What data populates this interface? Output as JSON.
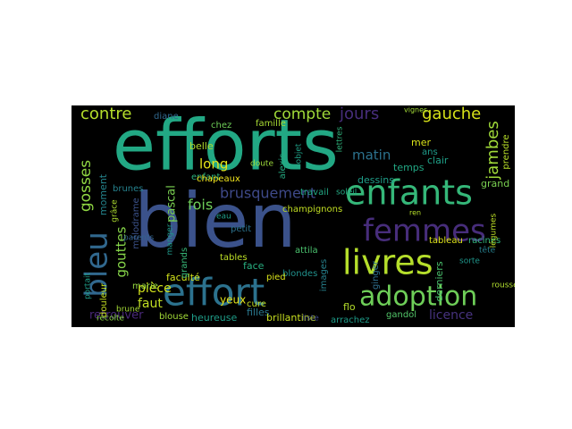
{
  "wordcloud": {
    "words": [
      {
        "text": "efforts",
        "color": "#22a884"
      },
      {
        "text": "bien",
        "color": "#3b528b"
      },
      {
        "text": "effort",
        "color": "#2c728e"
      },
      {
        "text": "enfants",
        "color": "#35b779"
      },
      {
        "text": "femmes",
        "color": "#472d7b"
      },
      {
        "text": "livres",
        "color": "#b5de2b"
      },
      {
        "text": "adoption",
        "color": "#6ece58"
      },
      {
        "text": "bleu",
        "color": "#31688e"
      },
      {
        "text": "contre",
        "color": "#b5de2b"
      },
      {
        "text": "gauche",
        "color": "#d7e219"
      },
      {
        "text": "jours",
        "color": "#472d7b"
      },
      {
        "text": "compte",
        "color": "#a0da39"
      },
      {
        "text": "jambes",
        "color": "#a0da39"
      },
      {
        "text": "brusquement",
        "color": "#3e4989"
      },
      {
        "text": "gosses",
        "color": "#90d743"
      },
      {
        "text": "gouttes",
        "color": "#86d549"
      },
      {
        "text": "fois",
        "color": "#6ece58"
      },
      {
        "text": "matin",
        "color": "#2c728e"
      },
      {
        "text": "moment",
        "color": "#25858e"
      },
      {
        "text": "pascal",
        "color": "#7ad151"
      },
      {
        "text": "faut",
        "color": "#c2df23"
      },
      {
        "text": "pièce",
        "color": "#d2e21b"
      },
      {
        "text": "long",
        "color": "#e5e419"
      },
      {
        "text": "licence",
        "color": "#46327e"
      },
      {
        "text": "retrouver",
        "color": "#482878"
      },
      {
        "text": "yeux",
        "color": "#e5e419"
      },
      {
        "text": "dessins",
        "color": "#1f9e89"
      },
      {
        "text": "temps",
        "color": "#22a884"
      },
      {
        "text": "clair",
        "color": "#1fa188"
      },
      {
        "text": "mer",
        "color": "#d8e219"
      },
      {
        "text": "ans",
        "color": "#1e9b8a"
      },
      {
        "text": "derniers",
        "color": "#4ac16d"
      },
      {
        "text": "grand",
        "color": "#7ad151"
      },
      {
        "text": "diane",
        "color": "#31688e"
      },
      {
        "text": "belle",
        "color": "#b0dd2f"
      },
      {
        "text": "enfant",
        "color": "#2db27d"
      },
      {
        "text": "brunes",
        "color": "#26828e"
      },
      {
        "text": "chapeaux",
        "color": "#f1e51d"
      },
      {
        "text": "filles",
        "color": "#2a788e"
      },
      {
        "text": "champignons",
        "color": "#c2df23"
      },
      {
        "text": "blondes",
        "color": "#21918c"
      },
      {
        "text": "faculté",
        "color": "#d2e21b"
      },
      {
        "text": "heureuse",
        "color": "#1f9e89"
      },
      {
        "text": "brillantine",
        "color": "#c8e020"
      },
      {
        "text": "arrachez",
        "color": "#1e9c89"
      },
      {
        "text": "gandol",
        "color": "#52c569"
      },
      {
        "text": "rousse",
        "color": "#b0dd2f"
      },
      {
        "text": "attila",
        "color": "#4ac16d"
      },
      {
        "text": "liste",
        "color": "#3e4989"
      },
      {
        "text": "flo",
        "color": "#b5de2b"
      },
      {
        "text": "blouse",
        "color": "#a2da37"
      },
      {
        "text": "marie",
        "color": "#95d840"
      },
      {
        "text": "grands",
        "color": "#37b878"
      },
      {
        "text": "cure",
        "color": "#c2df23"
      },
      {
        "text": "face",
        "color": "#28ae80"
      },
      {
        "text": "petit",
        "color": "#2c728e"
      },
      {
        "text": "tables",
        "color": "#bddf26"
      },
      {
        "text": "pied",
        "color": "#d8e219"
      },
      {
        "text": "images",
        "color": "#26828e"
      },
      {
        "text": "ginger",
        "color": "#2e6e8e"
      },
      {
        "text": "douleur",
        "color": "#c5e021"
      },
      {
        "text": "brune",
        "color": "#a5db36"
      },
      {
        "text": "recolte",
        "color": "#8bd646"
      },
      {
        "text": "portait",
        "color": "#1f9e89"
      },
      {
        "text": "mélodrame",
        "color": "#3b528b"
      },
      {
        "text": "grâce",
        "color": "#addc30"
      },
      {
        "text": "manger",
        "color": "#1f9a8a"
      },
      {
        "text": "parents",
        "color": "#33638d"
      },
      {
        "text": "travail",
        "color": "#22a884"
      },
      {
        "text": "soleil",
        "color": "#24aa83"
      },
      {
        "text": "alexis",
        "color": "#25ab82"
      },
      {
        "text": "objet",
        "color": "#1fa187"
      },
      {
        "text": "lettres",
        "color": "#2fb47c"
      },
      {
        "text": "tableau",
        "color": "#dde318"
      },
      {
        "text": "racines",
        "color": "#31b57b"
      },
      {
        "text": "tête",
        "color": "#277f8e"
      },
      {
        "text": "légumes",
        "color": "#bddf26"
      },
      {
        "text": "prendre",
        "color": "#b8de29"
      },
      {
        "text": "famille",
        "color": "#a8db34"
      },
      {
        "text": "doute",
        "color": "#9dd93b"
      },
      {
        "text": "chez",
        "color": "#6ece58"
      },
      {
        "text": "sorte",
        "color": "#1f968b"
      },
      {
        "text": "vignes",
        "color": "#a2da37"
      },
      {
        "text": "eau",
        "color": "#1f9e89"
      },
      {
        "text": "ren",
        "color": "#b5de2b"
      }
    ]
  }
}
